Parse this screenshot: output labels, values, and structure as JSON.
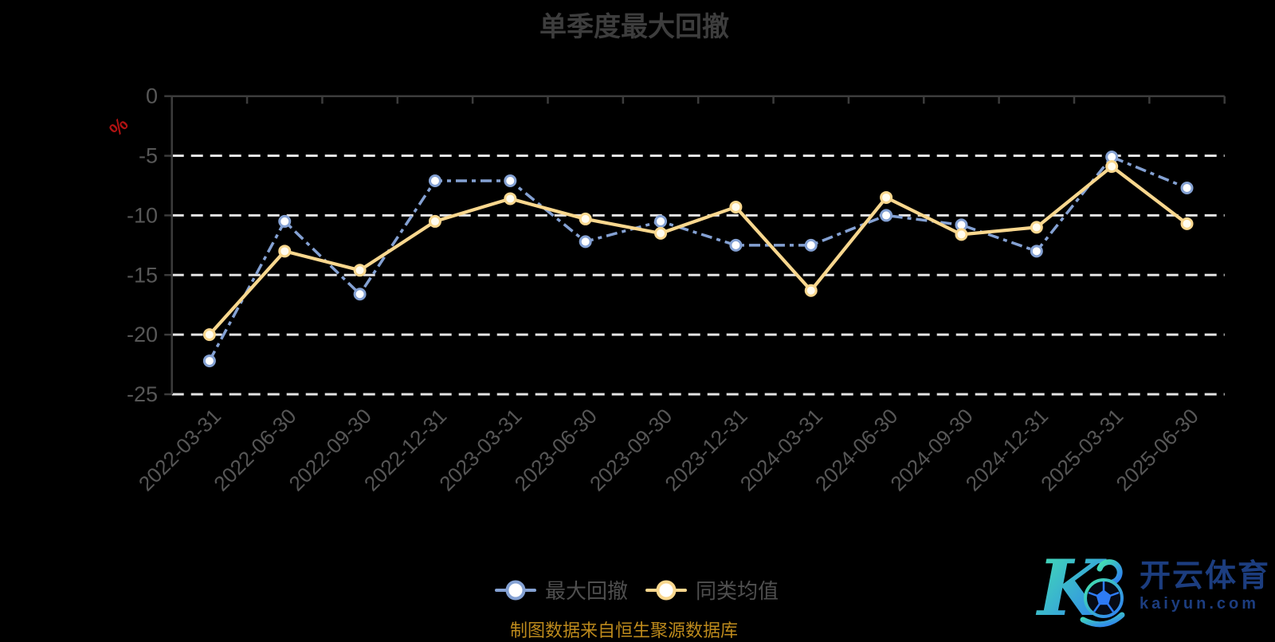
{
  "title": "单季度最大回撤",
  "y_axis": {
    "unit_label": "%",
    "unit_color": "#b01212",
    "tick_labels": [
      "0",
      "-5",
      "-10",
      "-15",
      "-20",
      "-25"
    ]
  },
  "legend": [
    {
      "label": "最大回撤"
    },
    {
      "label": "同类均值"
    }
  ],
  "caption": "制图数据来自恒生聚源数据库",
  "watermark": {
    "monogram": "K",
    "brand": "开云体育",
    "domain": "kaiyun.com",
    "navy": "#1c3d7f",
    "gradient_from": "#44e5ad",
    "gradient_to": "#2e7bf5"
  },
  "chart_data": {
    "type": "line",
    "title": "单季度最大回撤",
    "ylabel": "%",
    "xlabel": "",
    "ylim": [
      -25,
      0
    ],
    "y_ticks": [
      0,
      -5,
      -10,
      -15,
      -20,
      -25
    ],
    "grid": "horizontal dashed white",
    "legend_position": "bottom",
    "background": "#000000",
    "categories": [
      "2022-03-31",
      "2022-06-30",
      "2022-09-30",
      "2022-12-31",
      "2023-03-31",
      "2023-06-30",
      "2023-09-30",
      "2023-12-31",
      "2024-03-31",
      "2024-06-30",
      "2024-09-30",
      "2024-12-31",
      "2025-03-31",
      "2025-06-30"
    ],
    "series": [
      {
        "name": "最大回撤",
        "id": "max-drawdown",
        "color": "#84a1d3",
        "line_style": "dashed",
        "marker": "circle",
        "marker_fill": "#ffffff",
        "values": [
          -22.2,
          -10.5,
          -16.6,
          -7.1,
          -7.1,
          -12.2,
          -10.5,
          -12.5,
          -12.5,
          -10.0,
          -10.8,
          -13.0,
          -5.1,
          -7.7
        ]
      },
      {
        "name": "同类均值",
        "id": "peer-average",
        "color": "#f9d78e",
        "line_style": "solid",
        "marker": "circle",
        "marker_fill": "#fffcf0",
        "values": [
          -20.0,
          -13.0,
          -14.6,
          -10.5,
          -8.6,
          -10.3,
          -11.5,
          -9.3,
          -16.3,
          -8.5,
          -11.6,
          -11.0,
          -5.9,
          -10.7
        ]
      }
    ]
  }
}
